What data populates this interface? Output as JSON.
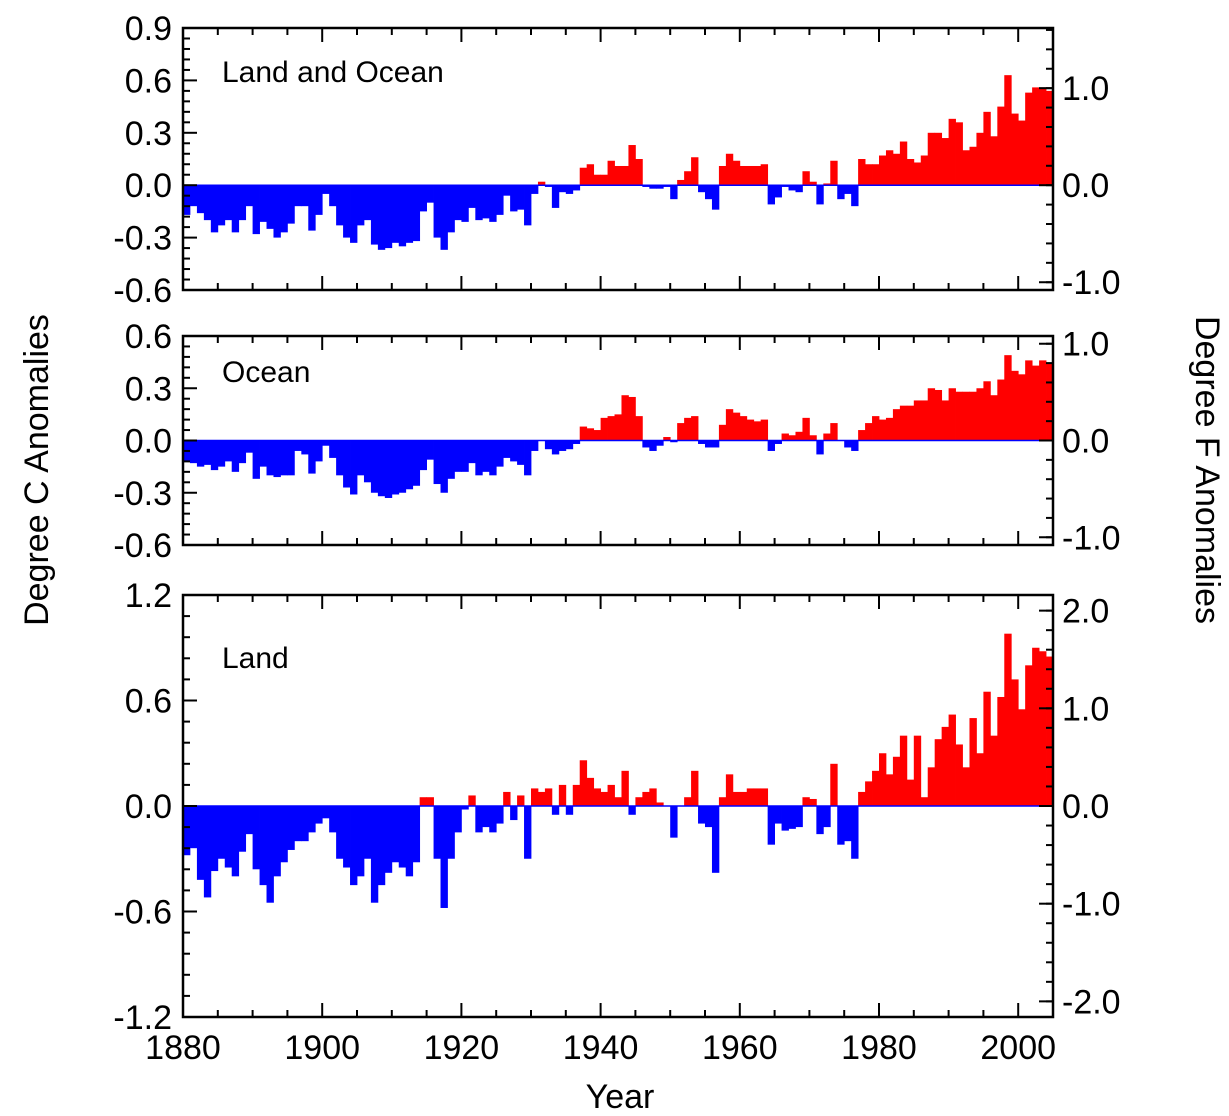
{
  "colors": {
    "positive": "#ff0000",
    "negative": "#0000ff",
    "baseline": "#0000ff"
  },
  "x_axis": {
    "label": "Year",
    "range": [
      1880,
      2005
    ],
    "ticks": [
      1880,
      1900,
      1920,
      1940,
      1960,
      1980,
      2000
    ],
    "tick_labels": [
      "1880",
      "1900",
      "1920",
      "1940",
      "1960",
      "1980",
      "2000"
    ]
  },
  "left_axis_label": "Degree C Anomalies",
  "right_axis_label": "Degree F Anomalies",
  "chart_data": [
    {
      "type": "bar",
      "title": "Land and Ocean",
      "x": [
        1880,
        1881,
        1882,
        1883,
        1884,
        1885,
        1886,
        1887,
        1888,
        1889,
        1890,
        1891,
        1892,
        1893,
        1894,
        1895,
        1896,
        1897,
        1898,
        1899,
        1900,
        1901,
        1902,
        1903,
        1904,
        1905,
        1906,
        1907,
        1908,
        1909,
        1910,
        1911,
        1912,
        1913,
        1914,
        1915,
        1916,
        1917,
        1918,
        1919,
        1920,
        1921,
        1922,
        1923,
        1924,
        1925,
        1926,
        1927,
        1928,
        1929,
        1930,
        1931,
        1932,
        1933,
        1934,
        1935,
        1936,
        1937,
        1938,
        1939,
        1940,
        1941,
        1942,
        1943,
        1944,
        1945,
        1946,
        1947,
        1948,
        1949,
        1950,
        1951,
        1952,
        1953,
        1954,
        1955,
        1956,
        1957,
        1958,
        1959,
        1960,
        1961,
        1962,
        1963,
        1964,
        1965,
        1966,
        1967,
        1968,
        1969,
        1970,
        1971,
        1972,
        1973,
        1974,
        1975,
        1976,
        1977,
        1978,
        1979,
        1980,
        1981,
        1982,
        1983,
        1984,
        1985,
        1986,
        1987,
        1988,
        1989,
        1990,
        1991,
        1992,
        1993,
        1994,
        1995,
        1996,
        1997,
        1998,
        1999,
        2000,
        2001,
        2002,
        2003,
        2004
      ],
      "y": [
        -0.17,
        -0.12,
        -0.16,
        -0.2,
        -0.27,
        -0.23,
        -0.2,
        -0.27,
        -0.2,
        -0.12,
        -0.28,
        -0.21,
        -0.25,
        -0.3,
        -0.27,
        -0.22,
        -0.12,
        -0.12,
        -0.26,
        -0.17,
        -0.05,
        -0.12,
        -0.23,
        -0.3,
        -0.33,
        -0.23,
        -0.2,
        -0.34,
        -0.37,
        -0.36,
        -0.33,
        -0.35,
        -0.33,
        -0.32,
        -0.15,
        -0.1,
        -0.3,
        -0.37,
        -0.27,
        -0.2,
        -0.21,
        -0.13,
        -0.2,
        -0.19,
        -0.21,
        -0.17,
        -0.06,
        -0.15,
        -0.14,
        -0.23,
        -0.05,
        0.02,
        -0.01,
        -0.13,
        -0.04,
        -0.05,
        -0.03,
        0.1,
        0.12,
        0.06,
        0.06,
        0.14,
        0.11,
        0.11,
        0.23,
        0.15,
        -0.01,
        -0.02,
        -0.02,
        -0.01,
        -0.08,
        0.03,
        0.08,
        0.16,
        -0.04,
        -0.08,
        -0.14,
        0.11,
        0.18,
        0.14,
        0.11,
        0.11,
        0.11,
        0.12,
        -0.11,
        -0.07,
        -0.01,
        -0.03,
        -0.04,
        0.08,
        0.02,
        -0.11,
        0.01,
        0.14,
        -0.08,
        -0.05,
        -0.12,
        0.15,
        0.12,
        0.12,
        0.17,
        0.2,
        0.18,
        0.25,
        0.15,
        0.13,
        0.17,
        0.3,
        0.3,
        0.27,
        0.38,
        0.36,
        0.2,
        0.22,
        0.3,
        0.42,
        0.28,
        0.45,
        0.63,
        0.41,
        0.37,
        0.53,
        0.56,
        0.56,
        0.54
      ],
      "ylim": [
        -0.6,
        0.9
      ],
      "yticks": [
        -0.6,
        -0.3,
        0.0,
        0.3,
        0.6,
        0.9
      ],
      "ytick_labels": [
        "-0.6",
        "-0.3",
        "0.0",
        "0.3",
        "0.6",
        "0.9"
      ],
      "right_ticks_f": [
        -1.0,
        0.0,
        1.0
      ],
      "right_tick_labels": [
        "-1.0",
        "0.0",
        "1.0"
      ]
    },
    {
      "type": "bar",
      "title": "Ocean",
      "x": [
        1880,
        1881,
        1882,
        1883,
        1884,
        1885,
        1886,
        1887,
        1888,
        1889,
        1890,
        1891,
        1892,
        1893,
        1894,
        1895,
        1896,
        1897,
        1898,
        1899,
        1900,
        1901,
        1902,
        1903,
        1904,
        1905,
        1906,
        1907,
        1908,
        1909,
        1910,
        1911,
        1912,
        1913,
        1914,
        1915,
        1916,
        1917,
        1918,
        1919,
        1920,
        1921,
        1922,
        1923,
        1924,
        1925,
        1926,
        1927,
        1928,
        1929,
        1930,
        1931,
        1932,
        1933,
        1934,
        1935,
        1936,
        1937,
        1938,
        1939,
        1940,
        1941,
        1942,
        1943,
        1944,
        1945,
        1946,
        1947,
        1948,
        1949,
        1950,
        1951,
        1952,
        1953,
        1954,
        1955,
        1956,
        1957,
        1958,
        1959,
        1960,
        1961,
        1962,
        1963,
        1964,
        1965,
        1966,
        1967,
        1968,
        1969,
        1970,
        1971,
        1972,
        1973,
        1974,
        1975,
        1976,
        1977,
        1978,
        1979,
        1980,
        1981,
        1982,
        1983,
        1984,
        1985,
        1986,
        1987,
        1988,
        1989,
        1990,
        1991,
        1992,
        1993,
        1994,
        1995,
        1996,
        1997,
        1998,
        1999,
        2000,
        2001,
        2002,
        2003,
        2004
      ],
      "y": [
        -0.12,
        -0.13,
        -0.15,
        -0.14,
        -0.17,
        -0.15,
        -0.12,
        -0.18,
        -0.13,
        -0.07,
        -0.22,
        -0.15,
        -0.2,
        -0.21,
        -0.2,
        -0.2,
        -0.06,
        -0.08,
        -0.19,
        -0.12,
        -0.03,
        -0.1,
        -0.2,
        -0.27,
        -0.31,
        -0.2,
        -0.24,
        -0.3,
        -0.32,
        -0.33,
        -0.31,
        -0.3,
        -0.28,
        -0.26,
        -0.17,
        -0.11,
        -0.25,
        -0.3,
        -0.22,
        -0.18,
        -0.18,
        -0.13,
        -0.2,
        -0.18,
        -0.2,
        -0.15,
        -0.1,
        -0.12,
        -0.14,
        -0.2,
        -0.06,
        0.0,
        -0.05,
        -0.08,
        -0.06,
        -0.05,
        -0.02,
        0.08,
        0.07,
        0.06,
        0.13,
        0.14,
        0.15,
        0.26,
        0.25,
        0.14,
        -0.04,
        -0.06,
        -0.03,
        0.02,
        -0.01,
        0.1,
        0.13,
        0.14,
        -0.02,
        -0.04,
        -0.04,
        0.09,
        0.18,
        0.16,
        0.14,
        0.12,
        0.11,
        0.12,
        -0.06,
        -0.02,
        0.04,
        0.03,
        0.05,
        0.13,
        0.03,
        -0.08,
        0.04,
        0.1,
        0.0,
        -0.04,
        -0.06,
        0.06,
        0.1,
        0.14,
        0.12,
        0.13,
        0.18,
        0.2,
        0.2,
        0.23,
        0.23,
        0.3,
        0.29,
        0.23,
        0.3,
        0.28,
        0.28,
        0.28,
        0.3,
        0.34,
        0.26,
        0.35,
        0.49,
        0.4,
        0.38,
        0.46,
        0.43,
        0.46,
        0.44
      ],
      "ylim": [
        -0.6,
        0.6
      ],
      "yticks": [
        -0.6,
        -0.3,
        0.0,
        0.3,
        0.6
      ],
      "ytick_labels": [
        "-0.6",
        "-0.3",
        "0.0",
        "0.3",
        "0.6"
      ],
      "right_ticks_f": [
        -1.0,
        0.0,
        1.0
      ],
      "right_tick_labels": [
        "-1.0",
        "0.0",
        "1.0"
      ]
    },
    {
      "type": "bar",
      "title": "Land",
      "x": [
        1880,
        1881,
        1882,
        1883,
        1884,
        1885,
        1886,
        1887,
        1888,
        1889,
        1890,
        1891,
        1892,
        1893,
        1894,
        1895,
        1896,
        1897,
        1898,
        1899,
        1900,
        1901,
        1902,
        1903,
        1904,
        1905,
        1906,
        1907,
        1908,
        1909,
        1910,
        1911,
        1912,
        1913,
        1914,
        1915,
        1916,
        1917,
        1918,
        1919,
        1920,
        1921,
        1922,
        1923,
        1924,
        1925,
        1926,
        1927,
        1928,
        1929,
        1930,
        1931,
        1932,
        1933,
        1934,
        1935,
        1936,
        1937,
        1938,
        1939,
        1940,
        1941,
        1942,
        1943,
        1944,
        1945,
        1946,
        1947,
        1948,
        1949,
        1950,
        1951,
        1952,
        1953,
        1954,
        1955,
        1956,
        1957,
        1958,
        1959,
        1960,
        1961,
        1962,
        1963,
        1964,
        1965,
        1966,
        1967,
        1968,
        1969,
        1970,
        1971,
        1972,
        1973,
        1974,
        1975,
        1976,
        1977,
        1978,
        1979,
        1980,
        1981,
        1982,
        1983,
        1984,
        1985,
        1986,
        1987,
        1988,
        1989,
        1990,
        1991,
        1992,
        1993,
        1994,
        1995,
        1996,
        1997,
        1998,
        1999,
        2000,
        2001,
        2002,
        2003,
        2004
      ],
      "y": [
        -0.28,
        -0.24,
        -0.42,
        -0.52,
        -0.37,
        -0.3,
        -0.35,
        -0.4,
        -0.26,
        -0.16,
        -0.36,
        -0.45,
        -0.55,
        -0.4,
        -0.32,
        -0.25,
        -0.2,
        -0.2,
        -0.15,
        -0.1,
        -0.07,
        -0.15,
        -0.3,
        -0.35,
        -0.45,
        -0.4,
        -0.3,
        -0.55,
        -0.45,
        -0.38,
        -0.32,
        -0.35,
        -0.4,
        -0.32,
        0.05,
        0.05,
        -0.3,
        -0.58,
        -0.3,
        -0.15,
        -0.02,
        0.06,
        -0.15,
        -0.12,
        -0.15,
        -0.1,
        0.08,
        -0.08,
        0.06,
        -0.3,
        0.1,
        0.08,
        0.1,
        -0.05,
        0.12,
        -0.05,
        0.12,
        0.26,
        0.16,
        0.1,
        0.08,
        0.12,
        0.05,
        0.2,
        -0.05,
        0.05,
        0.08,
        0.1,
        0.02,
        0.0,
        -0.18,
        0.0,
        0.05,
        0.2,
        -0.1,
        -0.12,
        -0.38,
        0.05,
        0.18,
        0.08,
        0.08,
        0.1,
        0.1,
        0.1,
        -0.22,
        -0.1,
        -0.14,
        -0.13,
        -0.12,
        0.05,
        0.04,
        -0.16,
        -0.12,
        0.24,
        -0.22,
        -0.2,
        -0.3,
        0.08,
        0.14,
        0.2,
        0.3,
        0.18,
        0.28,
        0.4,
        0.15,
        0.4,
        0.05,
        0.22,
        0.38,
        0.45,
        0.52,
        0.35,
        0.22,
        0.5,
        0.3,
        0.65,
        0.4,
        0.62,
        0.98,
        0.72,
        0.55,
        0.8,
        0.9,
        0.88,
        0.85
      ],
      "ylim": [
        -1.2,
        1.2
      ],
      "yticks": [
        -1.2,
        -0.6,
        0.0,
        0.6,
        1.2
      ],
      "ytick_labels": [
        "-1.2",
        "-0.6",
        "0.0",
        "0.6",
        "1.2"
      ],
      "right_ticks_f": [
        -2.0,
        -1.0,
        0.0,
        1.0,
        2.0
      ],
      "right_tick_labels": [
        "-2.0",
        "-1.0",
        "0.0",
        "1.0",
        "2.0"
      ]
    }
  ]
}
